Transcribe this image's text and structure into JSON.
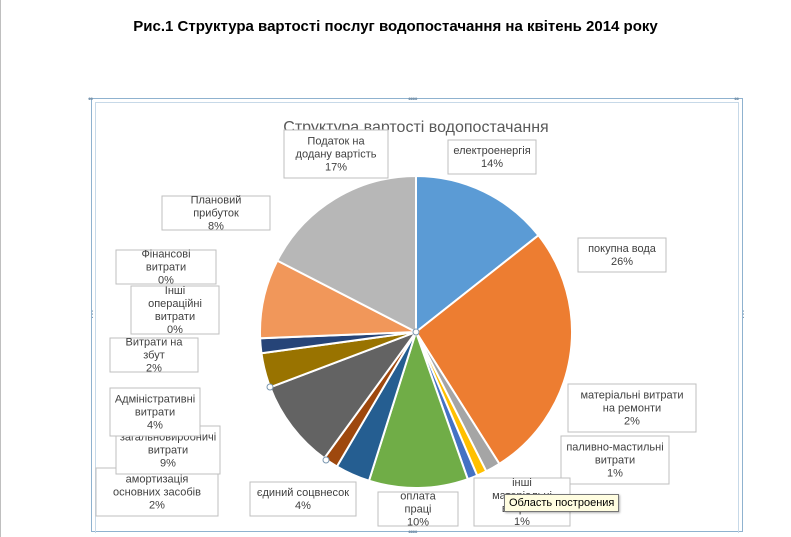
{
  "document": {
    "title": "Рис.1 Структура вартості послуг водопостачання на квітень 2014 року"
  },
  "tooltip": "Область построения",
  "chart_data": {
    "type": "pie",
    "title": "Структура вартості водопостачання",
    "series": [
      {
        "slices": [
          {
            "label": "електроенергія",
            "value": 14,
            "pct": "14%",
            "color": "#5b9bd5"
          },
          {
            "label": "покупна вода",
            "value": 26,
            "pct": "26%",
            "color": "#ed7d31"
          },
          {
            "label": "матеріальні витрати на ремонти",
            "value": 1.5,
            "pct": "2%",
            "color": "#a5a5a5"
          },
          {
            "label": "паливно-мастильні витрати",
            "value": 1,
            "pct": "1%",
            "color": "#ffc000"
          },
          {
            "label": "інші матеріальні витрати",
            "value": 1,
            "pct": "1%",
            "color": "#4472c4"
          },
          {
            "label": "оплата праці",
            "value": 10,
            "pct": "10%",
            "color": "#70ad47"
          },
          {
            "label": "єдиний соцвнесок",
            "value": 3.5,
            "pct": "4%",
            "color": "#255e91"
          },
          {
            "label": "амортизація основних засобів",
            "value": 1.5,
            "pct": "2%",
            "color": "#9e480e"
          },
          {
            "label": "загальновиробничі витрати",
            "value": 9,
            "pct": "9%",
            "color": "#636363"
          },
          {
            "label": "Адміністративні витрати",
            "value": 3.5,
            "pct": "4%",
            "color": "#997300"
          },
          {
            "label": "Витрати на збут",
            "value": 1.5,
            "pct": "2%",
            "color": "#264478"
          },
          {
            "label": "Інші операційні витрати",
            "value": 0,
            "pct": "0%",
            "color": "#43682b"
          },
          {
            "label": "Фінансові витрати",
            "value": 0,
            "pct": "0%",
            "color": "#698ed0"
          },
          {
            "label": "Плановий прибуток",
            "value": 8,
            "pct": "8%",
            "color": "#f1975a"
          },
          {
            "label": "Податок на додану вартість",
            "value": 17,
            "pct": "17%",
            "color": "#b7b7b7"
          }
        ]
      }
    ],
    "legend": "none",
    "data_labels": "callout"
  }
}
